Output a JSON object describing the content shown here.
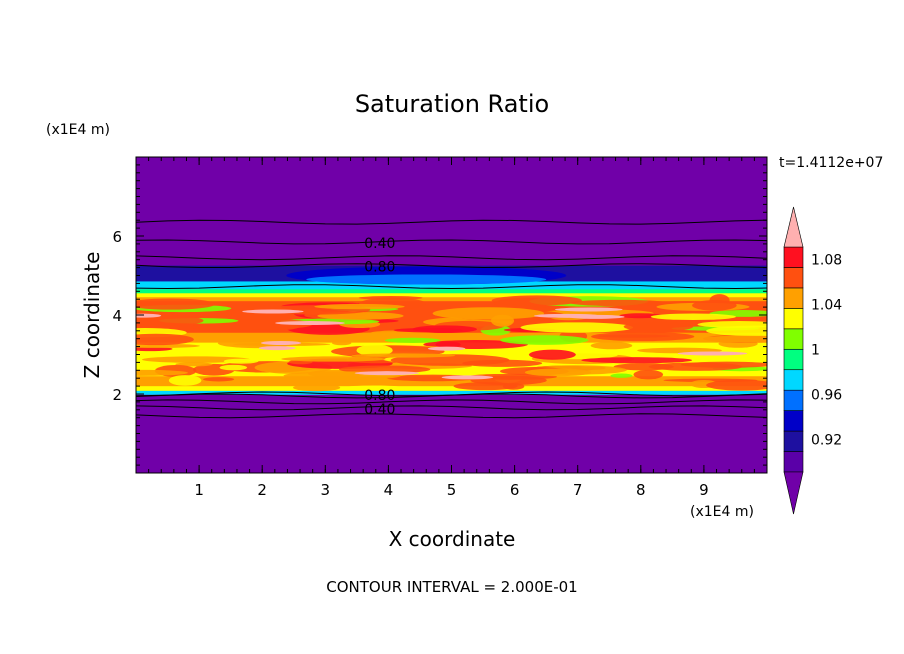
{
  "chart_data": {
    "type": "heatmap",
    "title": "Saturation Ratio",
    "xlabel": "X coordinate",
    "ylabel": "Z coordinate",
    "x_unit": "(x1E4 m)",
    "y_unit": "(x1E4 m)",
    "time_label": "t=1.4112e+07",
    "footer": "CONTOUR INTERVAL = 2.000E-01",
    "xlim": [
      0,
      10
    ],
    "ylim": [
      0,
      8
    ],
    "x_ticks": [
      "1",
      "2",
      "3",
      "4",
      "5",
      "6",
      "7",
      "8",
      "9"
    ],
    "y_ticks": [
      "2",
      "4",
      "6"
    ],
    "colorbar": {
      "labels": [
        "0.92",
        "0.96",
        "1",
        "1.04",
        "1.08"
      ],
      "levels": [
        0.9,
        0.92,
        0.94,
        0.96,
        0.98,
        1.0,
        1.02,
        1.04,
        1.06,
        1.08,
        1.1
      ],
      "colors": [
        "#5a00a8",
        "#1e10a0",
        "#0000c8",
        "#0070ff",
        "#00d8ff",
        "#00ff80",
        "#80ff00",
        "#ffff00",
        "#ffa000",
        "#ff5010",
        "#ff1020"
      ],
      "under_color": "#7000a8",
      "over_color": "#ffb0b0"
    },
    "contour_labels": [
      {
        "text": "0.40",
        "x": 3.5,
        "y": 5.85
      },
      {
        "text": "0.80",
        "x": 3.5,
        "y": 5.25
      },
      {
        "text": "0.80",
        "x": 3.5,
        "y": 2.0
      },
      {
        "text": "0.40",
        "x": 3.5,
        "y": 1.65
      }
    ],
    "background_color": "#7000a8"
  }
}
